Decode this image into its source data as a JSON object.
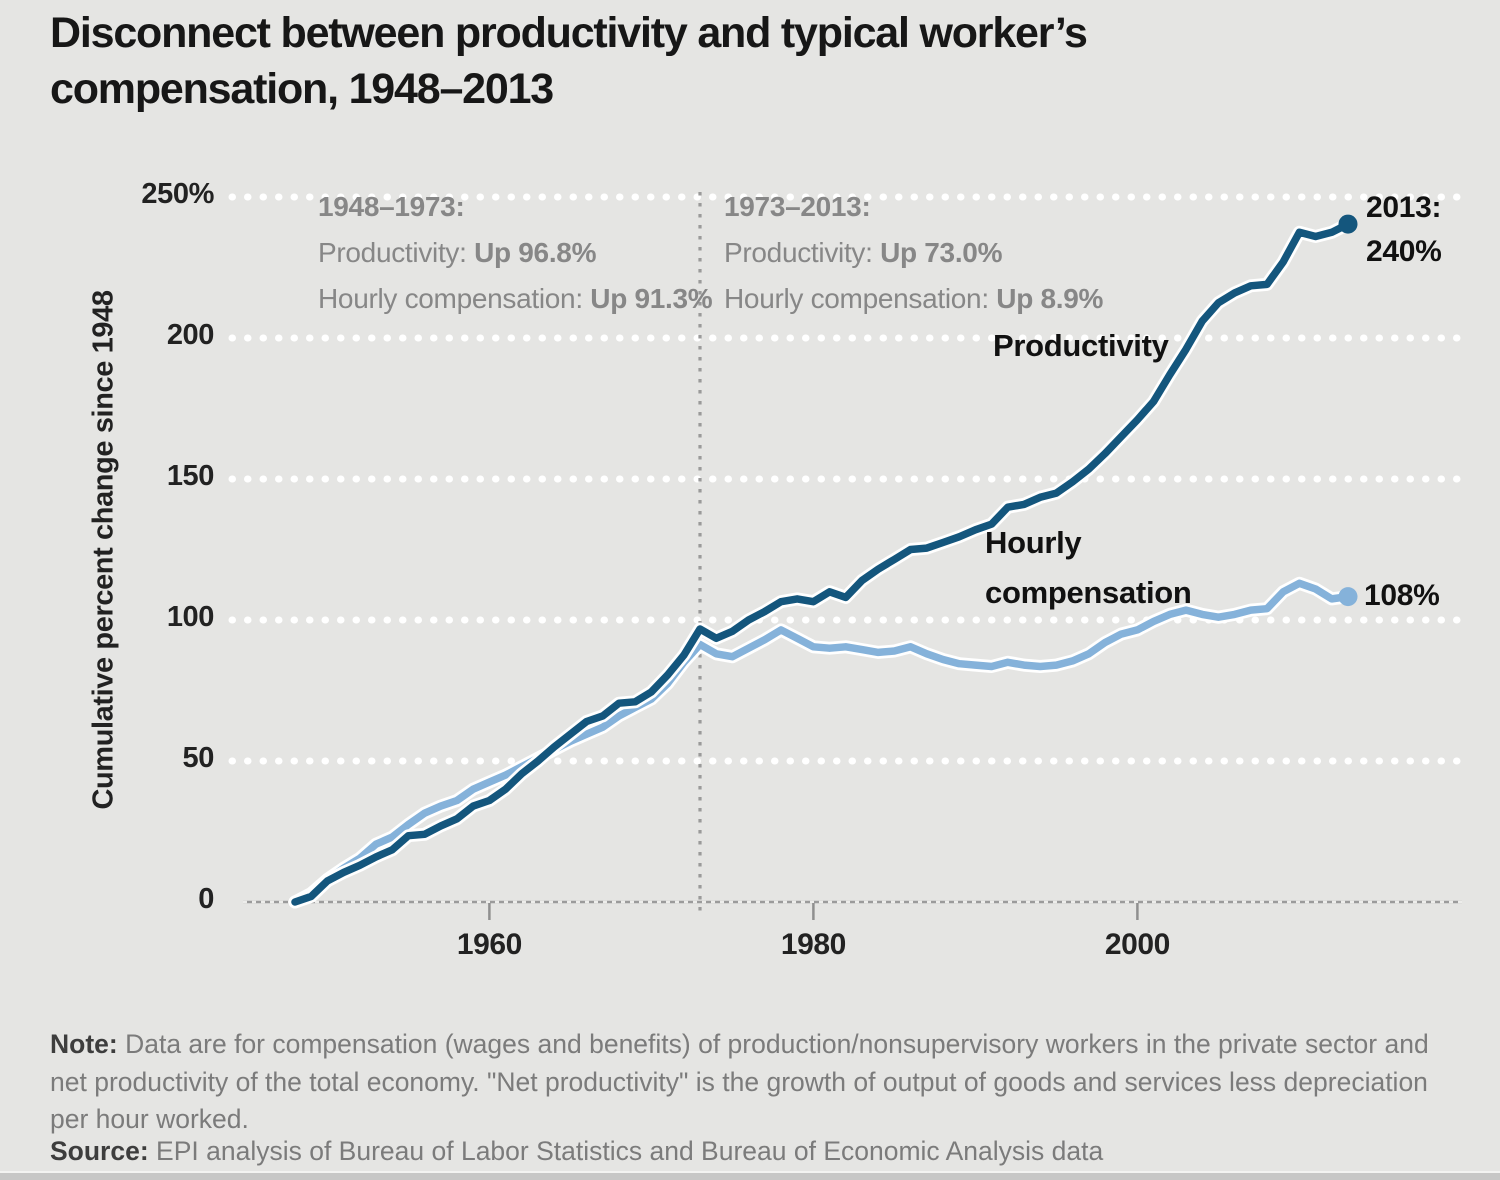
{
  "page": {
    "title": "Disconnect between productivity and typical worker’s\ncompensation, 1948–2013"
  },
  "annotations": {
    "period1": {
      "title": "1948–1973:",
      "line1_label": "Productivity: ",
      "line1_value": "Up 96.8%",
      "line2_label": "Hourly compensation: ",
      "line2_value": "Up 91.3%"
    },
    "period2": {
      "title": "1973–2013:",
      "line1_label": "Productivity: ",
      "line1_value": "Up 73.0%",
      "line2_label": "Hourly compensation: ",
      "line2_value": "Up 8.9%"
    }
  },
  "series_labels": {
    "productivity": "Productivity",
    "compensation": "Hourly compensation"
  },
  "end_labels": {
    "productivity": "2013:\n240%",
    "compensation": "108%"
  },
  "note": {
    "label": "Note:",
    "body": " Data are for compensation (wages and benefits) of production/nonsupervisory workers in the private sector and net productivity of the total economy. \"Net productivity\" is the growth of output of goods and services less depreciation per hour worked."
  },
  "source": {
    "label": "Source:",
    "body": " EPI analysis of Bureau of Labor Statistics and Bureau of Economic Analysis data"
  },
  "chart_data": {
    "type": "line",
    "title": "Disconnect between productivity and typical worker’s compensation, 1948–2013",
    "xlabel": "",
    "ylabel": "Cumulative percent change since 1948",
    "xlim": [
      1948,
      2013
    ],
    "ylim": [
      0,
      250
    ],
    "grid": "horizontal white dotted lines; dotted gray vertical marker at 1973",
    "legend_position": "inline labels on lines",
    "background_color": "#e5e5e3",
    "gridline_color": "#ffffff",
    "vline_year": 1973,
    "y_ticks": [
      {
        "value": 0,
        "label": "0"
      },
      {
        "value": 50,
        "label": "50"
      },
      {
        "value": 100,
        "label": "100"
      },
      {
        "value": 150,
        "label": "150"
      },
      {
        "value": 200,
        "label": "200"
      },
      {
        "value": 250,
        "label": "250%"
      }
    ],
    "x_ticks": [
      {
        "value": 1960,
        "label": "1960"
      },
      {
        "value": 1980,
        "label": "1980"
      },
      {
        "value": 2000,
        "label": "2000"
      }
    ],
    "x": [
      1948,
      1949,
      1950,
      1951,
      1952,
      1953,
      1954,
      1955,
      1956,
      1957,
      1958,
      1959,
      1960,
      1961,
      1962,
      1963,
      1964,
      1965,
      1966,
      1967,
      1968,
      1969,
      1970,
      1971,
      1972,
      1973,
      1974,
      1975,
      1976,
      1977,
      1978,
      1979,
      1980,
      1981,
      1982,
      1983,
      1984,
      1985,
      1986,
      1987,
      1988,
      1989,
      1990,
      1991,
      1992,
      1993,
      1994,
      1995,
      1996,
      1997,
      1998,
      1999,
      2000,
      2001,
      2002,
      2003,
      2004,
      2005,
      2006,
      2007,
      2008,
      2009,
      2010,
      2011,
      2012,
      2013
    ],
    "series": [
      {
        "name": "Productivity",
        "color": "#14567D",
        "values": [
          0,
          2,
          7.5,
          10.5,
          13,
          16,
          18.5,
          23.5,
          24,
          27,
          29.5,
          34,
          36,
          40,
          45.5,
          50,
          55,
          59.5,
          64,
          66,
          70.5,
          71,
          74.5,
          80.5,
          87.5,
          96.8,
          93.5,
          96,
          100,
          103,
          106.5,
          107.5,
          106.5,
          110,
          108,
          114,
          118,
          121.5,
          125,
          125.5,
          127.5,
          129.5,
          132,
          134,
          140,
          141,
          143.5,
          145,
          149,
          153.5,
          159,
          165,
          171,
          177.5,
          187,
          196,
          206,
          212.5,
          216,
          218.5,
          219,
          227,
          237.5,
          236,
          237.5,
          240.4
        ]
      },
      {
        "name": "Hourly compensation",
        "color": "#85B2DA",
        "values": [
          0,
          3,
          8,
          12,
          15.5,
          20.5,
          23,
          27.5,
          31.5,
          34,
          36,
          40,
          42.5,
          45,
          48,
          51,
          54,
          57,
          59.5,
          62,
          66,
          69,
          72,
          77.5,
          85,
          91.3,
          88,
          87,
          90,
          93,
          96.5,
          93.5,
          90.5,
          90,
          90.5,
          89.5,
          88.5,
          89,
          90.5,
          88,
          86,
          84.5,
          84,
          83.5,
          85,
          84,
          83.5,
          84,
          85.5,
          88,
          92,
          95,
          96.5,
          99.5,
          102,
          103.5,
          102,
          101,
          102,
          103.5,
          104,
          110,
          113,
          111,
          107.5,
          108.3
        ]
      }
    ]
  }
}
